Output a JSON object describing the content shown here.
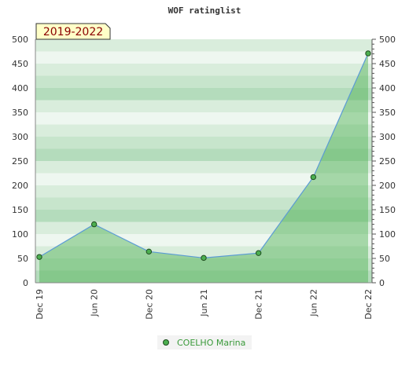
{
  "chart_data": {
    "type": "area",
    "title": "WOF ratinglist",
    "period_label": "2019-2022",
    "x": [
      "Dec 19",
      "Jun 20",
      "Dec 20",
      "Jun 21",
      "Dec 21",
      "Jun 22",
      "Dec 22"
    ],
    "series": [
      {
        "name": "COELHO Marina",
        "values": [
          53,
          120,
          64,
          51,
          61,
          217,
          471
        ]
      }
    ],
    "ylim": [
      0,
      500
    ],
    "y_ticks": [
      0,
      50,
      100,
      150,
      200,
      250,
      300,
      350,
      400,
      450,
      500
    ],
    "y_axis_both_sides": true,
    "grid": "horizontal bands",
    "legend_position": "bottom",
    "colors": {
      "line": "#5b9bd5",
      "area": "#4caf50",
      "marker": "#4caf50",
      "band_dark": "#b4dcbc",
      "band_light": "#eef7f0",
      "period_bg": "#ffffc8",
      "period_text": "#8b0000",
      "legend_text": "#3a9a3a"
    }
  }
}
